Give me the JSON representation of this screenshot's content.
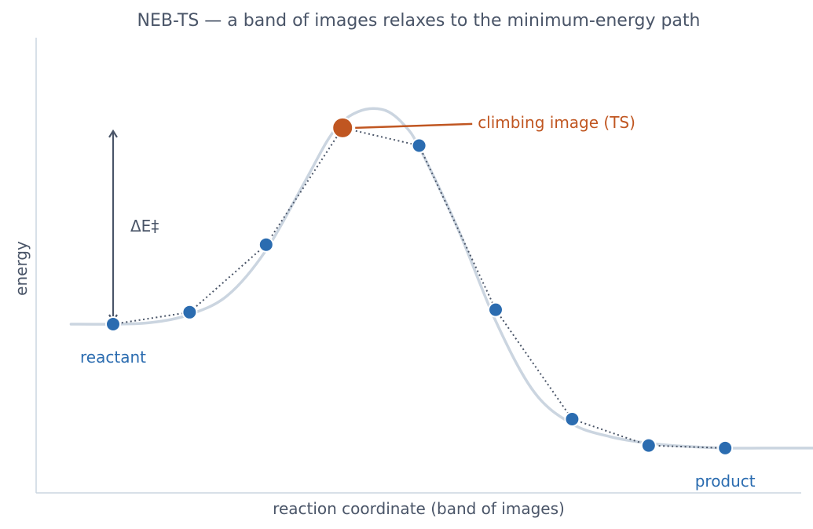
{
  "chart_data": {
    "type": "line",
    "title": "NEB-TS — a band of images relaxes to the minimum-energy path",
    "xlabel": "reaction coordinate (band of images)",
    "ylabel": "energy",
    "xlim": [
      -0.55,
      9.5
    ],
    "ylim": [
      -0.15,
      1.3
    ],
    "grid": false,
    "series": [
      {
        "role": "minimum-energy-path",
        "style": "solid",
        "x": [
          -0.55,
          0,
          0.5,
          1,
          1.5,
          2,
          2.5,
          2.8,
          3,
          3.2,
          3.4,
          3.6,
          3.8,
          4,
          4.5,
          5,
          5.5,
          6,
          6.5,
          7,
          7.5,
          8,
          8.5,
          9,
          9.4
        ],
        "y": [
          0.54,
          0.54,
          0.545,
          0.57,
          0.63,
          0.77,
          0.98,
          1.11,
          1.17,
          1.2,
          1.21,
          1.2,
          1.16,
          1.09,
          0.84,
          0.55,
          0.33,
          0.23,
          0.19,
          0.17,
          0.16,
          0.155,
          0.155,
          0.155,
          0.155
        ]
      },
      {
        "role": "band-of-images",
        "style": "dotted",
        "x": [
          0,
          1,
          2,
          3,
          4,
          5,
          6,
          7,
          8
        ],
        "y": [
          0.54,
          0.577,
          0.787,
          1.15,
          1.095,
          0.585,
          0.245,
          0.163,
          0.155
        ]
      }
    ],
    "climbing_image_index": 3,
    "labels": {
      "reactant": "reactant",
      "product": "product",
      "climbing": "climbing image (TS)",
      "barrier": "ΔE‡"
    },
    "colors": {
      "images": "#2b6cb0",
      "climbing": "#c05621",
      "path": "#cbd5e0",
      "band": "#4a5568",
      "text": "#4a5568",
      "axis": "#cbd5e0"
    }
  }
}
